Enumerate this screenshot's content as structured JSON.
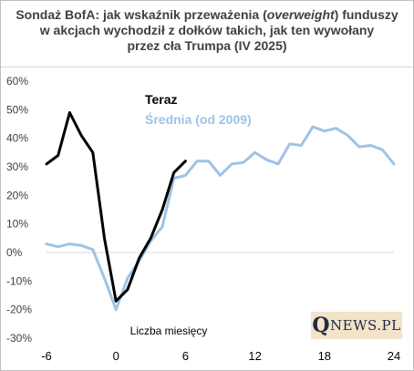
{
  "title": {
    "line1_pre": "Sondaż BofA: jak wskaźnik przeważenia (",
    "line1_em": "overweight",
    "line1_post": ") funduszy",
    "line2": "w akcjach wychodził z dołków takich, jak ten wywołany",
    "line3": "przez cła Trumpa (IV 2025)"
  },
  "logo": {
    "initial": "Q",
    "rest": "NEWS.PL"
  },
  "colors": {
    "now": "#000000",
    "avg": "#9dc3e6",
    "zero_line": "#d9d9d9"
  },
  "chart_data": {
    "type": "line",
    "xlabel": "Liczba miesięcy",
    "ylabel": "",
    "xlim": [
      -6,
      24
    ],
    "ylim": [
      -30,
      60
    ],
    "x_ticks": [
      -6,
      0,
      6,
      12,
      18,
      24
    ],
    "x_tick_labels": [
      "-6",
      "0",
      "6",
      "12",
      "18",
      "24"
    ],
    "y_ticks": [
      -30,
      -20,
      -10,
      0,
      10,
      20,
      30,
      40,
      50,
      60
    ],
    "y_tick_labels": [
      "-30%",
      "-20%",
      "-10%",
      "0%",
      "10%",
      "20%",
      "30%",
      "40%",
      "50%",
      "60%"
    ],
    "legend_position": "top-center",
    "series": [
      {
        "name": "Teraz",
        "color": "#000000",
        "x": [
          -6,
          -5,
          -4,
          -3,
          -2,
          -1,
          0,
          1,
          2,
          3,
          4,
          5,
          6
        ],
        "y": [
          31,
          34,
          49,
          41,
          35,
          5,
          -17,
          -13,
          -2,
          5,
          15,
          28,
          32
        ]
      },
      {
        "name": "Średnia (od 2009)",
        "color": "#9dc3e6",
        "x": [
          -6,
          -5,
          -4,
          -3,
          -2,
          -1,
          0,
          1,
          2,
          3,
          4,
          5,
          6,
          7,
          8,
          9,
          10,
          11,
          12,
          13,
          14,
          15,
          16,
          17,
          18,
          19,
          20,
          21,
          22,
          23,
          24
        ],
        "y": [
          3,
          2,
          3,
          2.5,
          1,
          -9,
          -20,
          -9,
          -3,
          4,
          9,
          26,
          27,
          32,
          32,
          27,
          31,
          31.5,
          35,
          32.5,
          31,
          38,
          37.5,
          44,
          42.5,
          43.5,
          41,
          37,
          37.5,
          36,
          31
        ]
      }
    ]
  }
}
